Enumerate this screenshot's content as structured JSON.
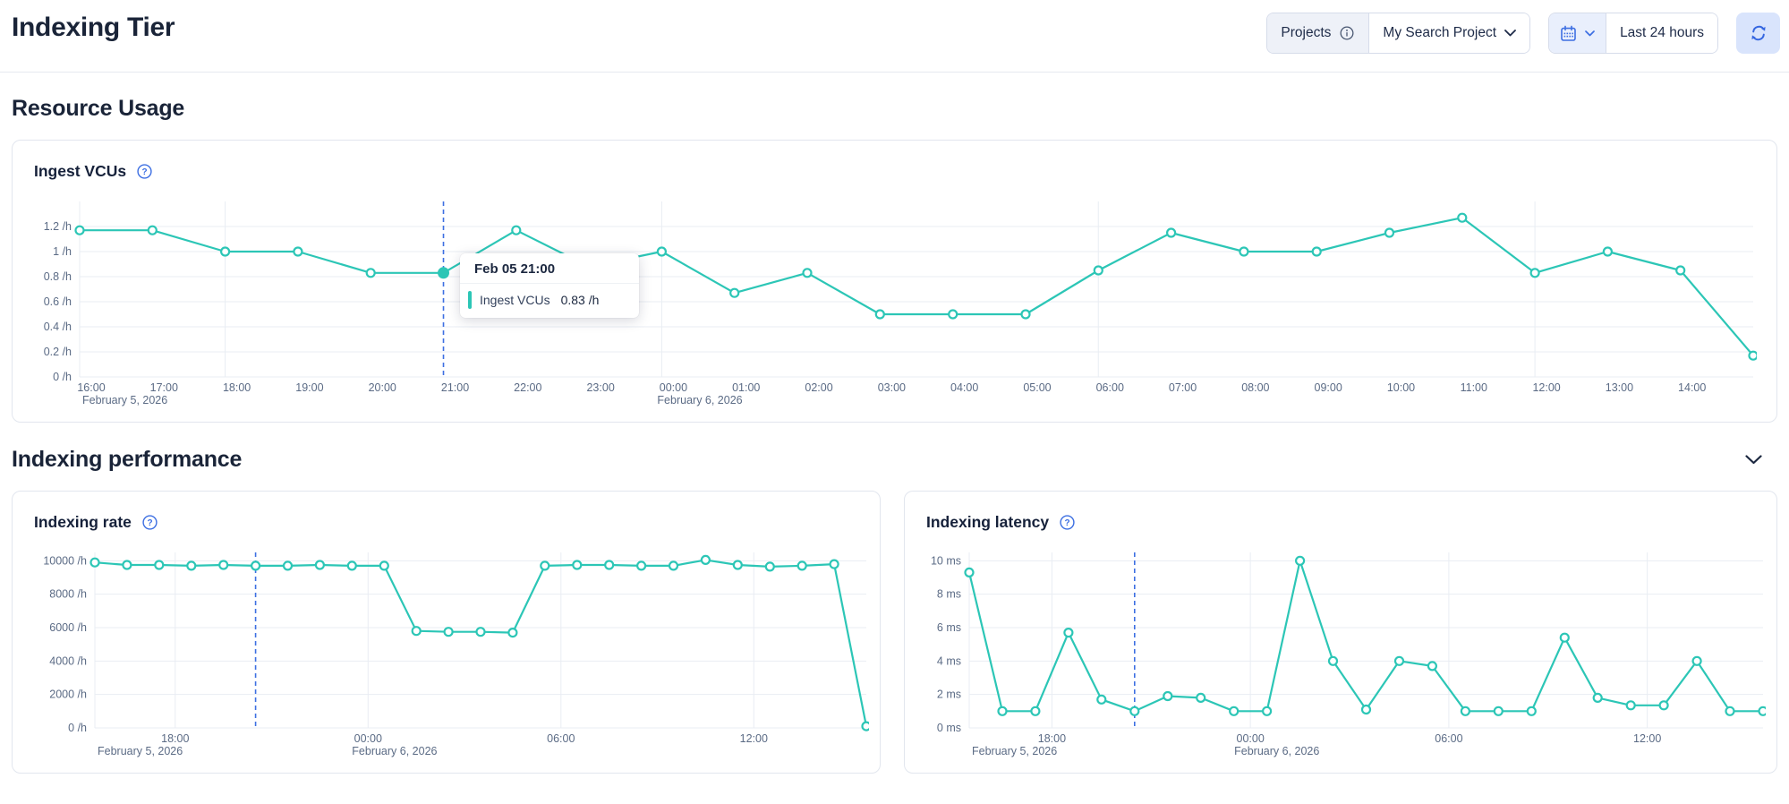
{
  "page": {
    "title": "Indexing Tier"
  },
  "header": {
    "projects_label": "Projects",
    "project_name": "My Search Project",
    "time_range": "Last 24 hours"
  },
  "sections": {
    "resource_usage": "Resource Usage",
    "indexing_performance": "Indexing performance"
  },
  "tooltip": {
    "title": "Feb 05 21:00",
    "series": "Ingest VCUs",
    "value": "0.83 /h"
  },
  "colors": {
    "accent_teal": "#2cc6b6",
    "accent_blue": "#3d6fe2",
    "text_dark": "#1a2438",
    "axis_text": "#5b6b85",
    "grid": "#e9edf3",
    "card_border": "#e2e6ee",
    "segment_gray_bg": "#eef1f8",
    "segment_blue_bg": "#e9effc",
    "refresh_bg": "#d9e4fc"
  },
  "chart_data": [
    {
      "type": "line",
      "title": "Ingest VCUs",
      "unit": "/h",
      "ymax": 1.4,
      "yticks": [
        {
          "v": 0,
          "label": "0 /h"
        },
        {
          "v": 0.2,
          "label": "0.2 /h"
        },
        {
          "v": 0.4,
          "label": "0.4 /h"
        },
        {
          "v": 0.6,
          "label": "0.6 /h"
        },
        {
          "v": 0.8,
          "label": "0.8 /h"
        },
        {
          "v": 1,
          "label": "1 /h"
        },
        {
          "v": 1.2,
          "label": "1.2 /h"
        }
      ],
      "xticks": [
        {
          "i": 0,
          "label": "16:00"
        },
        {
          "i": 1,
          "label": "17:00"
        },
        {
          "i": 2,
          "label": "18:00"
        },
        {
          "i": 3,
          "label": "19:00"
        },
        {
          "i": 4,
          "label": "20:00"
        },
        {
          "i": 5,
          "label": "21:00"
        },
        {
          "i": 6,
          "label": "22:00"
        },
        {
          "i": 7,
          "label": "23:00"
        },
        {
          "i": 8,
          "label": "00:00"
        },
        {
          "i": 9,
          "label": "01:00"
        },
        {
          "i": 10,
          "label": "02:00"
        },
        {
          "i": 11,
          "label": "03:00"
        },
        {
          "i": 12,
          "label": "04:00"
        },
        {
          "i": 13,
          "label": "05:00"
        },
        {
          "i": 14,
          "label": "06:00"
        },
        {
          "i": 15,
          "label": "07:00"
        },
        {
          "i": 16,
          "label": "08:00"
        },
        {
          "i": 17,
          "label": "09:00"
        },
        {
          "i": 18,
          "label": "10:00"
        },
        {
          "i": 19,
          "label": "11:00"
        },
        {
          "i": 20,
          "label": "12:00"
        },
        {
          "i": 21,
          "label": "13:00"
        },
        {
          "i": 22,
          "label": "14:00"
        }
      ],
      "dates": [
        {
          "i": 0,
          "label": "February 5, 2026"
        },
        {
          "i": 8,
          "label": "February 6, 2026"
        }
      ],
      "grid_i": [
        2,
        8,
        14,
        20
      ],
      "cursor_i": 5,
      "active_i": 5,
      "values": [
        1.17,
        1.17,
        1,
        1,
        0.83,
        0.83,
        1.17,
        0.88,
        1,
        0.67,
        0.83,
        0.5,
        0.5,
        0.5,
        0.85,
        1.15,
        1,
        1,
        1.15,
        1.27,
        0.83,
        1,
        0.85,
        0.17
      ]
    },
    {
      "type": "line",
      "title": "Indexing rate",
      "unit": "/h",
      "ymax": 10500,
      "yticks": [
        {
          "v": 0,
          "label": "0 /h"
        },
        {
          "v": 2000,
          "label": "2000 /h"
        },
        {
          "v": 4000,
          "label": "4000 /h"
        },
        {
          "v": 6000,
          "label": "6000 /h"
        },
        {
          "v": 8000,
          "label": "8000 /h"
        },
        {
          "v": 10000,
          "label": "10000 /h"
        }
      ],
      "xticks": [
        {
          "i": 2.5,
          "label": "18:00"
        },
        {
          "i": 8.5,
          "label": "00:00"
        },
        {
          "i": 14.5,
          "label": "06:00"
        },
        {
          "i": 20.5,
          "label": "12:00"
        }
      ],
      "dates": [
        {
          "i": 0,
          "label": "February 5, 2026"
        },
        {
          "i": 8.5,
          "label": "February 6, 2026"
        }
      ],
      "grid_i": [
        2.5,
        8.5,
        14.5,
        20.5
      ],
      "cursor_i": 5,
      "active_i": null,
      "values": [
        9900,
        9750,
        9750,
        9700,
        9750,
        9700,
        9700,
        9750,
        9700,
        9700,
        5800,
        5750,
        5750,
        5700,
        9700,
        9750,
        9750,
        9700,
        9700,
        10050,
        9750,
        9650,
        9700,
        9800,
        100
      ]
    },
    {
      "type": "line",
      "title": "Indexing latency",
      "unit": "ms",
      "ymax": 10.5,
      "yticks": [
        {
          "v": 0,
          "label": "0 ms"
        },
        {
          "v": 2,
          "label": "2 ms"
        },
        {
          "v": 4,
          "label": "4 ms"
        },
        {
          "v": 6,
          "label": "6 ms"
        },
        {
          "v": 8,
          "label": "8 ms"
        },
        {
          "v": 10,
          "label": "10 ms"
        }
      ],
      "xticks": [
        {
          "i": 2.5,
          "label": "18:00"
        },
        {
          "i": 8.5,
          "label": "00:00"
        },
        {
          "i": 14.5,
          "label": "06:00"
        },
        {
          "i": 20.5,
          "label": "12:00"
        }
      ],
      "dates": [
        {
          "i": 0,
          "label": "February 5, 2026"
        },
        {
          "i": 8.5,
          "label": "February 6, 2026"
        }
      ],
      "grid_i": [
        2.5,
        8.5,
        14.5,
        20.5
      ],
      "cursor_i": 5,
      "active_i": null,
      "values": [
        9.3,
        1,
        1,
        5.7,
        1.7,
        1,
        1.9,
        1.8,
        1,
        1,
        10,
        4,
        1.1,
        4,
        3.7,
        1,
        1,
        1,
        5.4,
        1.8,
        1.35,
        1.35,
        4,
        1,
        1
      ]
    }
  ]
}
